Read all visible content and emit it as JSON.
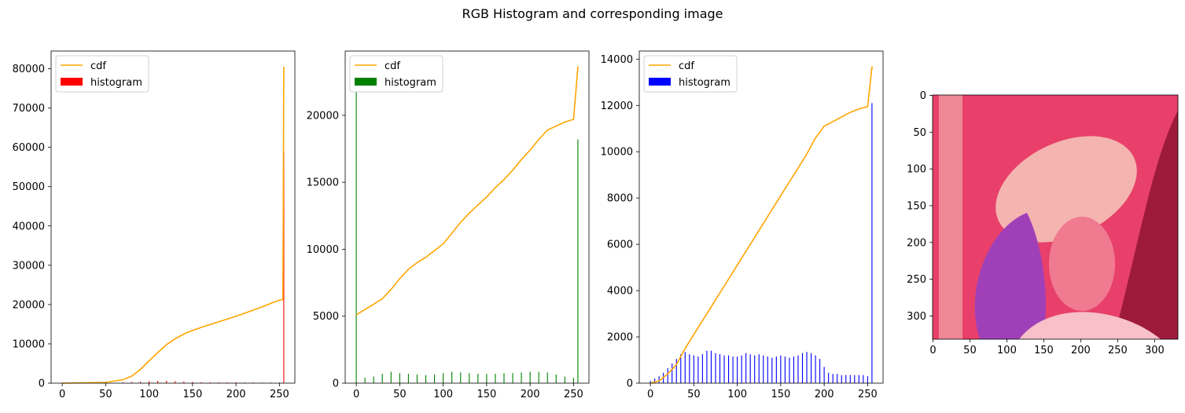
{
  "figure": {
    "title": "RGB Histogram and corresponding image"
  },
  "chart_data": [
    {
      "type": "bar",
      "name": "red-channel",
      "title": "",
      "xlabel": "",
      "ylabel": "",
      "xlim": [
        -12.75,
        267.75
      ],
      "ylim": [
        0,
        84500
      ],
      "xticks": [
        0,
        50,
        100,
        150,
        200,
        250
      ],
      "yticks": [
        0,
        10000,
        20000,
        30000,
        40000,
        50000,
        60000,
        70000,
        80000
      ],
      "legend": {
        "position": "top-left",
        "entries": [
          "cdf",
          "histogram"
        ]
      },
      "colors": {
        "histogram": "#ff0000",
        "cdf": "#ffa500"
      },
      "cdf": {
        "x": [
          0,
          50,
          70,
          80,
          90,
          100,
          110,
          120,
          130,
          140,
          150,
          160,
          170,
          180,
          190,
          200,
          210,
          220,
          230,
          240,
          250,
          254,
          255,
          256
        ],
        "y": [
          0,
          200,
          900,
          1800,
          3500,
          5700,
          7800,
          9800,
          11300,
          12500,
          13400,
          14200,
          14900,
          15600,
          16300,
          17000,
          17800,
          18600,
          19400,
          20300,
          21100,
          21300,
          80300,
          80300
        ]
      },
      "histogram": {
        "x": [
          70,
          80,
          90,
          100,
          110,
          120,
          130,
          140,
          150,
          160,
          170,
          180,
          190,
          200,
          210,
          220,
          230,
          240,
          250,
          255
        ],
        "values": [
          200,
          300,
          400,
          500,
          600,
          600,
          500,
          400,
          300,
          250,
          200,
          200,
          200,
          200,
          180,
          180,
          150,
          150,
          150,
          59000
        ]
      }
    },
    {
      "type": "bar",
      "name": "green-channel",
      "title": "",
      "xlabel": "",
      "ylabel": "",
      "xlim": [
        -12.75,
        267.75
      ],
      "ylim": [
        0,
        24800
      ],
      "xticks": [
        0,
        50,
        100,
        150,
        200,
        250
      ],
      "yticks": [
        0,
        5000,
        10000,
        15000,
        20000
      ],
      "legend": {
        "position": "top-left",
        "entries": [
          "cdf",
          "histogram"
        ]
      },
      "colors": {
        "histogram": "#008000",
        "cdf": "#ffa500"
      },
      "cdf": {
        "x": [
          0,
          10,
          20,
          30,
          40,
          50,
          60,
          70,
          80,
          90,
          100,
          110,
          120,
          130,
          140,
          150,
          160,
          170,
          180,
          190,
          200,
          210,
          220,
          230,
          240,
          250,
          255,
          256
        ],
        "y": [
          5100,
          5500,
          5900,
          6300,
          7000,
          7800,
          8500,
          9000,
          9400,
          9900,
          10400,
          11200,
          12000,
          12700,
          13300,
          13900,
          14600,
          15200,
          15900,
          16700,
          17400,
          18200,
          18900,
          19200,
          19500,
          19700,
          23600,
          23600
        ]
      },
      "histogram": {
        "x": [
          0,
          10,
          20,
          30,
          40,
          50,
          60,
          70,
          80,
          90,
          100,
          110,
          120,
          130,
          140,
          150,
          160,
          170,
          180,
          190,
          200,
          210,
          220,
          230,
          240,
          250,
          255
        ],
        "values": [
          23800,
          400,
          500,
          700,
          850,
          750,
          700,
          650,
          600,
          650,
          750,
          850,
          800,
          750,
          700,
          700,
          700,
          750,
          750,
          800,
          850,
          850,
          800,
          650,
          500,
          400,
          18200
        ]
      }
    },
    {
      "type": "bar",
      "name": "blue-channel",
      "title": "",
      "xlabel": "",
      "ylabel": "",
      "xlim": [
        -12.75,
        267.75
      ],
      "ylim": [
        0,
        14350
      ],
      "xticks": [
        0,
        50,
        100,
        150,
        200,
        250
      ],
      "yticks": [
        0,
        2000,
        4000,
        6000,
        8000,
        10000,
        12000,
        14000
      ],
      "legend": {
        "position": "top-left",
        "entries": [
          "cdf",
          "histogram"
        ]
      },
      "colors": {
        "histogram": "#0000ff",
        "cdf": "#ffa500"
      },
      "cdf": {
        "x": [
          0,
          10,
          20,
          30,
          40,
          50,
          60,
          70,
          80,
          90,
          100,
          110,
          120,
          130,
          140,
          150,
          160,
          170,
          180,
          190,
          200,
          210,
          220,
          230,
          240,
          250,
          255,
          256
        ],
        "y": [
          0,
          100,
          400,
          800,
          1500,
          2100,
          2700,
          3300,
          3900,
          4500,
          5100,
          5700,
          6300,
          6900,
          7500,
          8100,
          8700,
          9300,
          9900,
          10600,
          11100,
          11300,
          11500,
          11700,
          11850,
          11950,
          13650,
          13650
        ]
      },
      "histogram": {
        "x": [
          0,
          5,
          10,
          15,
          20,
          25,
          30,
          35,
          40,
          45,
          50,
          55,
          60,
          65,
          70,
          75,
          80,
          85,
          90,
          95,
          100,
          105,
          110,
          115,
          120,
          125,
          130,
          135,
          140,
          145,
          150,
          155,
          160,
          165,
          170,
          175,
          180,
          185,
          190,
          195,
          200,
          205,
          210,
          215,
          220,
          225,
          230,
          235,
          240,
          245,
          250,
          255
        ],
        "values": [
          100,
          200,
          300,
          450,
          650,
          850,
          1050,
          1250,
          1350,
          1250,
          1200,
          1150,
          1250,
          1400,
          1400,
          1300,
          1250,
          1200,
          1200,
          1150,
          1150,
          1200,
          1300,
          1250,
          1200,
          1250,
          1200,
          1150,
          1100,
          1150,
          1200,
          1150,
          1100,
          1150,
          1200,
          1300,
          1350,
          1300,
          1200,
          1050,
          700,
          450,
          400,
          400,
          350,
          350,
          350,
          350,
          350,
          350,
          300,
          12100
        ]
      }
    },
    {
      "type": "image",
      "name": "corresponding-image",
      "xlim": [
        -0.5,
        331.5
      ],
      "ylim": [
        331.5,
        -0.5
      ],
      "xticks": [
        0,
        50,
        100,
        150,
        200,
        250,
        300
      ],
      "yticks": [
        0,
        50,
        100,
        150,
        200,
        250,
        300
      ],
      "colors": {
        "background": "#e8406a",
        "hat": "#f4b4b0",
        "hair": "#a040b8",
        "skin": "#f07a90",
        "wall": "#f09aa0"
      }
    }
  ]
}
